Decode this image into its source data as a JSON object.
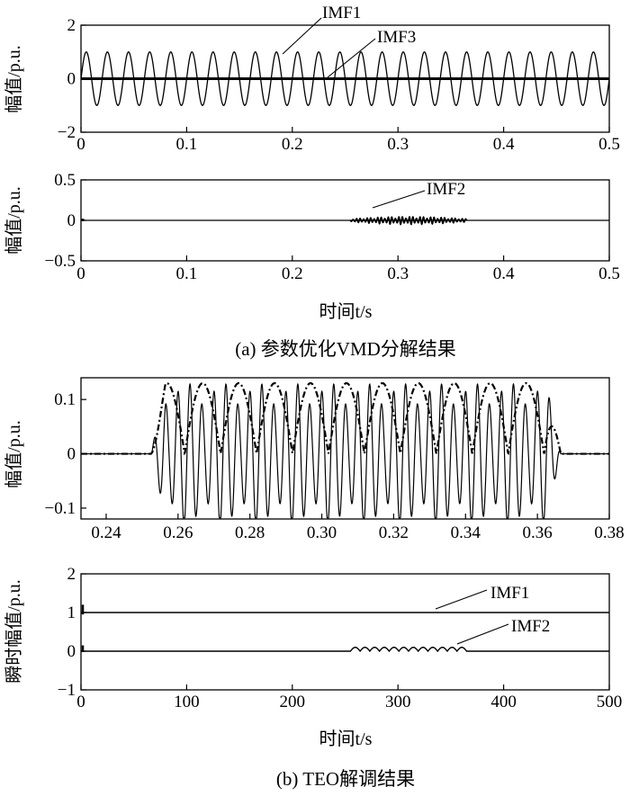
{
  "figure": {
    "caption_a": "(a) 参数优化VMD分解结果",
    "caption_b": "(b) TEO解调结果"
  },
  "chart_data": [
    {
      "type": "line",
      "ylabel": "幅值/p.u.",
      "xlabel": "",
      "xlim": [
        0,
        0.5
      ],
      "ylim": [
        -2,
        2
      ],
      "xticks": [
        "0",
        "0.1",
        "0.2",
        "0.3",
        "0.4",
        "0.5"
      ],
      "yticks": [
        "2",
        "0",
        "−2"
      ],
      "series": [
        {
          "name": "IMF1",
          "kind": "sine",
          "amplitude": 1,
          "frequency_hz": 50,
          "x_range": [
            0,
            0.5
          ]
        },
        {
          "name": "IMF3",
          "kind": "flat",
          "amplitude": 0,
          "x_range": [
            0,
            0.5
          ]
        }
      ],
      "annotations": [
        "IMF1",
        "IMF3"
      ]
    },
    {
      "type": "line",
      "ylabel": "幅值/p.u.",
      "xlabel": "时间t/s",
      "xlim": [
        0,
        0.5
      ],
      "ylim": [
        -0.5,
        0.5
      ],
      "xticks": [
        "0",
        "0.1",
        "0.2",
        "0.3",
        "0.4",
        "0.5"
      ],
      "yticks": [
        "0.5",
        "0",
        "−0.5"
      ],
      "series": [
        {
          "name": "IMF2",
          "kind": "burst",
          "amplitude": 0.05,
          "frequency_hz": 300,
          "x_range": [
            0.255,
            0.365
          ]
        }
      ],
      "annotations": [
        "IMF2"
      ]
    },
    {
      "type": "line",
      "ylabel": "幅值/p.u.",
      "xlabel": "",
      "xlim": [
        0.233,
        0.38
      ],
      "ylim": [
        -0.12,
        0.14
      ],
      "xticks": [
        "0.24",
        "0.26",
        "0.28",
        "0.30",
        "0.32",
        "0.34",
        "0.36",
        "0.38"
      ],
      "yticks": [
        "0.1",
        "0",
        "−0.1"
      ],
      "series": [
        {
          "kind": "burst",
          "amplitude": 0.13,
          "frequency_hz": 300,
          "x_range": [
            0.2525,
            0.3665
          ],
          "style": "solid"
        },
        {
          "kind": "envelope",
          "amplitude": 0.13,
          "frequency_hz": 100,
          "x_range": [
            0.2525,
            0.3665
          ],
          "style": "dash-dot"
        }
      ]
    },
    {
      "type": "line",
      "ylabel": "瞬时幅值/p.u.",
      "xlabel": "时间t/s",
      "xlim": [
        0,
        500
      ],
      "ylim": [
        -1,
        2
      ],
      "xticks": [
        "0",
        "100",
        "200",
        "300",
        "400",
        "500"
      ],
      "yticks": [
        "2",
        "1",
        "0",
        "−1"
      ],
      "series": [
        {
          "name": "IMF1",
          "kind": "flat",
          "level": 1,
          "x_range": [
            0,
            500
          ]
        },
        {
          "name": "IMF2",
          "kind": "scallop",
          "level": 0,
          "amplitude": 0.1,
          "x_range": [
            255,
            365
          ],
          "count": 12
        }
      ],
      "annotations": [
        "IMF1",
        "IMF2"
      ]
    }
  ]
}
